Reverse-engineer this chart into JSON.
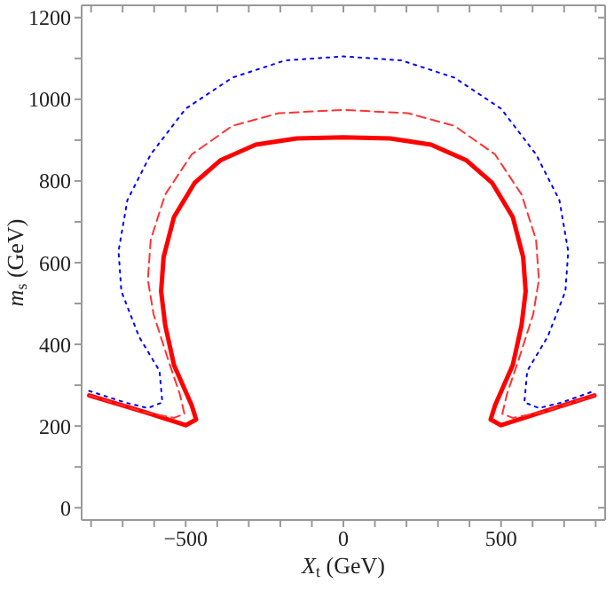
{
  "chart_data": {
    "type": "line",
    "xlabel": "X$_{t}$ (GeV)",
    "ylabel": "m$_{s}$ (GeV)",
    "xlim": [
      -830,
      830
    ],
    "ylim": [
      -30,
      1230
    ],
    "xticks": [
      {
        "value": -800,
        "label": null
      },
      {
        "value": -700,
        "label": null
      },
      {
        "value": -600,
        "label": null
      },
      {
        "value": -500,
        "label": "−500"
      },
      {
        "value": -400,
        "label": null
      },
      {
        "value": -300,
        "label": null
      },
      {
        "value": -200,
        "label": null
      },
      {
        "value": -100,
        "label": null
      },
      0,
      {
        "value": 100,
        "label": null
      },
      {
        "value": 200,
        "label": null
      },
      {
        "value": 300,
        "label": null
      },
      {
        "value": 400,
        "label": null
      },
      500,
      {
        "value": 600,
        "label": null
      },
      {
        "value": 700,
        "label": null
      },
      {
        "value": 800,
        "label": null
      }
    ],
    "yticks": [
      0,
      {
        "value": 100,
        "label": null
      },
      200,
      {
        "value": 300,
        "label": null
      },
      400,
      {
        "value": 500,
        "label": null
      },
      600,
      {
        "value": 700,
        "label": null
      },
      800,
      {
        "value": 900,
        "label": null
      },
      1000,
      {
        "value": 1100,
        "label": null
      },
      1200
    ],
    "grid": false,
    "legend": false,
    "marker": "none",
    "series": [
      {
        "color": "#ff0000",
        "line_style": "solid",
        "x": [
          -806,
          -630,
          -500,
          -467,
          -481,
          -537,
          -565,
          -578,
          -570,
          -537,
          -472,
          -389,
          -278,
          -148,
          0,
          148,
          278,
          389,
          472,
          537,
          570,
          578,
          565,
          537,
          481,
          467,
          500,
          630,
          796
        ],
        "values": [
          275,
          234,
          202,
          216,
          251,
          349,
          447,
          530,
          614,
          712,
          795,
          851,
          889,
          904,
          907,
          904,
          889,
          851,
          795,
          712,
          614,
          530,
          447,
          349,
          251,
          216,
          202,
          234,
          275
        ]
      },
      {
        "color": "#ff3333",
        "line_style": "dashed",
        "x": [
          -806,
          -630,
          -537,
          -504,
          -519,
          -556,
          -602,
          -620,
          -611,
          -565,
          -481,
          -352,
          -204,
          0,
          204,
          352,
          481,
          565,
          611,
          620,
          602,
          556,
          519,
          504,
          537,
          630,
          796
        ],
        "values": [
          275,
          234,
          220,
          230,
          279,
          363,
          474,
          558,
          656,
          767,
          865,
          935,
          966,
          974,
          966,
          935,
          865,
          767,
          656,
          558,
          474,
          363,
          279,
          230,
          220,
          234,
          275
        ]
      },
      {
        "color": "#0000ff",
        "line_style": "dotted",
        "x": [
          -806,
          -694,
          -620,
          -574,
          -583,
          -648,
          -704,
          -713,
          -685,
          -611,
          -500,
          -352,
          -185,
          0,
          185,
          352,
          500,
          611,
          685,
          713,
          704,
          648,
          583,
          574,
          620,
          694,
          796
        ],
        "values": [
          286,
          258,
          244,
          258,
          335,
          419,
          530,
          628,
          753,
          865,
          977,
          1053,
          1095,
          1105,
          1095,
          1053,
          977,
          865,
          753,
          628,
          530,
          419,
          335,
          258,
          244,
          258,
          286
        ]
      }
    ]
  }
}
